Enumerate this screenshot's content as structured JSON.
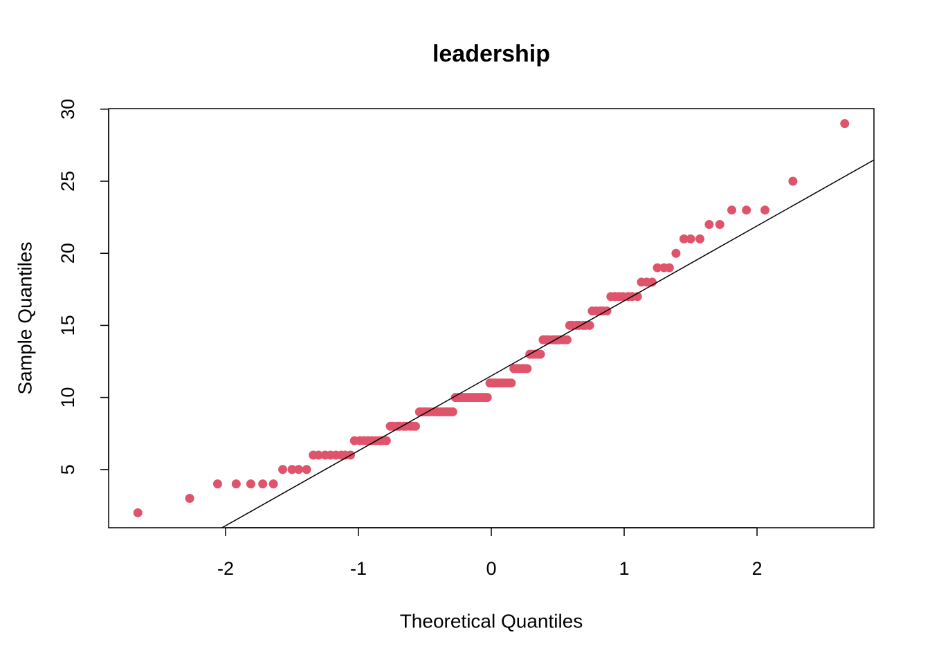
{
  "chart_data": {
    "type": "scatter",
    "title": "leadership",
    "xlabel": "Theoretical Quantiles",
    "ylabel": "Sample Quantiles",
    "color": "#DF536B",
    "xlim": [
      -2.88,
      2.88
    ],
    "ylim": [
      0.96,
      30.04
    ],
    "xticks": [
      -2,
      -1,
      0,
      1,
      2
    ],
    "yticks": [
      5,
      10,
      15,
      20,
      25,
      30
    ],
    "line": {
      "intercept": 11.5,
      "slope": 5.2,
      "color": "#000000"
    },
    "x": [
      -2.66,
      -2.27,
      -2.06,
      -1.92,
      -1.81,
      -1.72,
      -1.64,
      -1.57,
      -1.5,
      -1.45,
      -1.39,
      -1.34,
      -1.3,
      -1.25,
      -1.21,
      -1.17,
      -1.13,
      -1.1,
      -1.06,
      -1.03,
      -0.99,
      -0.96,
      -0.93,
      -0.9,
      -0.87,
      -0.84,
      -0.82,
      -0.79,
      -0.76,
      -0.74,
      -0.71,
      -0.69,
      -0.66,
      -0.64,
      -0.61,
      -0.59,
      -0.57,
      -0.54,
      -0.52,
      -0.5,
      -0.48,
      -0.46,
      -0.43,
      -0.41,
      -0.39,
      -0.37,
      -0.35,
      -0.33,
      -0.31,
      -0.29,
      -0.27,
      -0.25,
      -0.23,
      -0.21,
      -0.19,
      -0.17,
      -0.15,
      -0.13,
      -0.11,
      -0.09,
      -0.07,
      -0.05,
      -0.03,
      -0.01,
      0.01,
      0.03,
      0.05,
      0.07,
      0.09,
      0.11,
      0.13,
      0.15,
      0.17,
      0.19,
      0.21,
      0.23,
      0.25,
      0.27,
      0.29,
      0.31,
      0.33,
      0.35,
      0.37,
      0.39,
      0.41,
      0.43,
      0.46,
      0.48,
      0.5,
      0.52,
      0.54,
      0.57,
      0.59,
      0.61,
      0.64,
      0.66,
      0.69,
      0.71,
      0.74,
      0.76,
      0.79,
      0.82,
      0.84,
      0.87,
      0.9,
      0.93,
      0.96,
      0.99,
      1.03,
      1.06,
      1.1,
      1.13,
      1.17,
      1.21,
      1.25,
      1.3,
      1.34,
      1.39,
      1.45,
      1.5,
      1.57,
      1.64,
      1.72,
      1.81,
      1.92,
      2.06,
      2.27,
      2.66
    ],
    "values": [
      2,
      3,
      4,
      4,
      4,
      4,
      4,
      5,
      5,
      5,
      5,
      6,
      6,
      6,
      6,
      6,
      6,
      6,
      6,
      7,
      7,
      7,
      7,
      7,
      7,
      7,
      7,
      7,
      8,
      8,
      8,
      8,
      8,
      8,
      8,
      8,
      8,
      9,
      9,
      9,
      9,
      9,
      9,
      9,
      9,
      9,
      9,
      9,
      9,
      9,
      10,
      10,
      10,
      10,
      10,
      10,
      10,
      10,
      10,
      10,
      10,
      10,
      10,
      11,
      11,
      11,
      11,
      11,
      11,
      11,
      11,
      11,
      12,
      12,
      12,
      12,
      12,
      12,
      13,
      13,
      13,
      13,
      13,
      14,
      14,
      14,
      14,
      14,
      14,
      14,
      14,
      14,
      15,
      15,
      15,
      15,
      15,
      15,
      15,
      16,
      16,
      16,
      16,
      16,
      17,
      17,
      17,
      17,
      17,
      17,
      17,
      18,
      18,
      18,
      19,
      19,
      19,
      20,
      21,
      21,
      21,
      22,
      22,
      23,
      23,
      23,
      25,
      29
    ]
  }
}
